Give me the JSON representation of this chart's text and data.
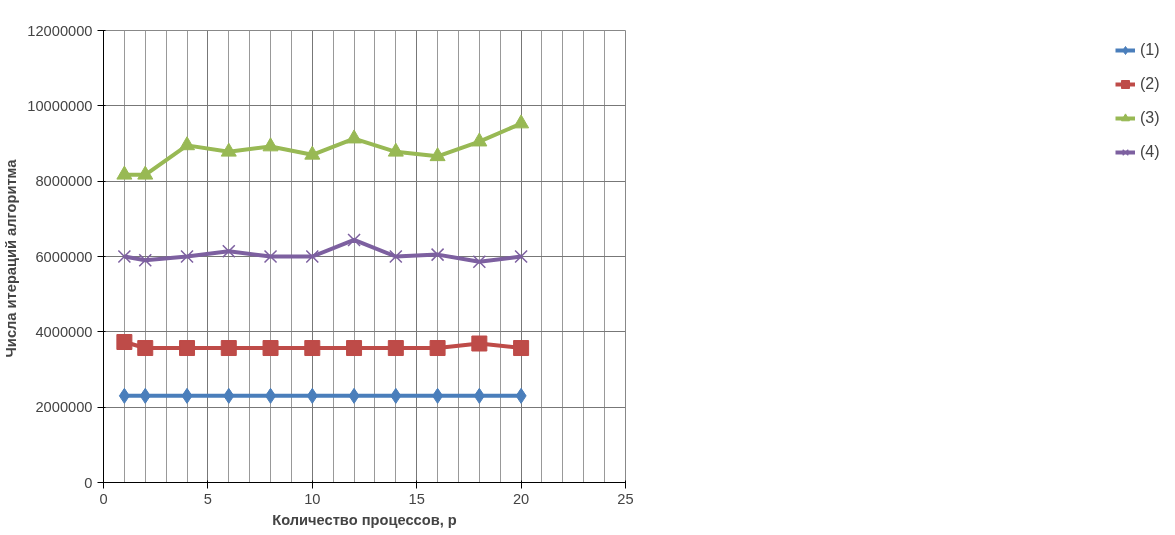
{
  "chart_data": {
    "type": "line",
    "xlabel": "Количество процессов, p",
    "ylabel": "Числа итераций  алгоритма",
    "x": [
      1,
      2,
      4,
      6,
      8,
      10,
      12,
      14,
      16,
      18,
      20
    ],
    "series": [
      {
        "name": "(1)",
        "color": "#4a7ebb",
        "marker": "diamond",
        "values": [
          2300000,
          2300000,
          2300000,
          2300000,
          2300000,
          2300000,
          2300000,
          2300000,
          2300000,
          2300000,
          2300000
        ]
      },
      {
        "name": "(2)",
        "color": "#be4b48",
        "marker": "square",
        "values": [
          3730000,
          3570000,
          3570000,
          3570000,
          3570000,
          3570000,
          3570000,
          3570000,
          3570000,
          3690000,
          3570000
        ]
      },
      {
        "name": "(3)",
        "color": "#98b954",
        "marker": "triangle",
        "values": [
          8170000,
          8170000,
          8950000,
          8780000,
          8920000,
          8700000,
          9130000,
          8780000,
          8660000,
          9050000,
          9530000
        ]
      },
      {
        "name": "(4)",
        "color": "#7d60a0",
        "marker": "cross",
        "values": [
          6000000,
          5900000,
          6000000,
          6140000,
          6000000,
          6000000,
          6440000,
          6000000,
          6050000,
          5860000,
          6000000
        ]
      }
    ],
    "xlim": [
      0,
      25
    ],
    "xticks": [
      0,
      5,
      10,
      15,
      20,
      25
    ],
    "ylim": [
      0,
      12000000
    ],
    "yticks": [
      0,
      2000000,
      4000000,
      6000000,
      8000000,
      10000000,
      12000000
    ],
    "grid": true,
    "legend": "right"
  }
}
